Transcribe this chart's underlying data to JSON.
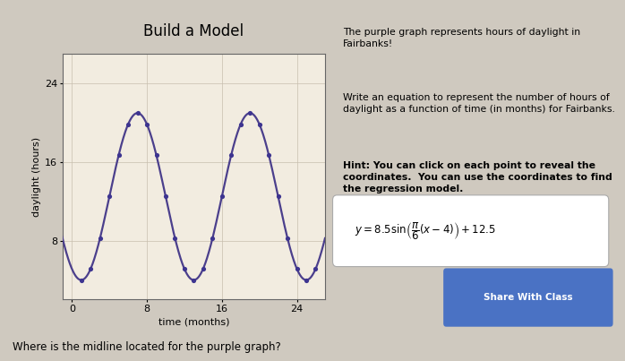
{
  "title": "Build a Model",
  "xlabel": "time (months)",
  "ylabel": "daylight (hours)",
  "xlim": [
    -1,
    27
  ],
  "ylim": [
    2,
    27
  ],
  "xticks": [
    0,
    8,
    16,
    24
  ],
  "yticks": [
    8,
    16,
    24
  ],
  "curve_color": "#4b3f8c",
  "dot_color": "#3d3490",
  "amplitude": 8.5,
  "period_factor": 0.5235987755982988,
  "phase_shift": 4,
  "midline": 12.5,
  "x_start": -1.5,
  "x_end": 27,
  "data_points_x": [
    1,
    2,
    3,
    4,
    5,
    6,
    7,
    8,
    9,
    10,
    11,
    12,
    13,
    14,
    15,
    16,
    17,
    18,
    19,
    20,
    21,
    22,
    23,
    24,
    25,
    26
  ],
  "title_fontsize": 12,
  "axis_label_fontsize": 8,
  "tick_fontsize": 8,
  "text1": "The purple graph represents hours of daylight in\nFairbanks!",
  "text2": "Write an equation to represent the number of hours of\ndaylight as a function of time (in months) for Fairbanks.",
  "text3_bold": "Hint: You can click on each point to reveal the\ncoordinates.  You can use the coordinates to find\nthe regression model.",
  "button_text": "Share With Class",
  "button_color": "#4a72c4",
  "bottom_text": "Where is the midline located for the purple graph?",
  "graph_bg": "#f2ece0",
  "grid_color": "#c8bfae",
  "fig_bg": "#cfc9bf",
  "right_bg": "#cfc9bf"
}
